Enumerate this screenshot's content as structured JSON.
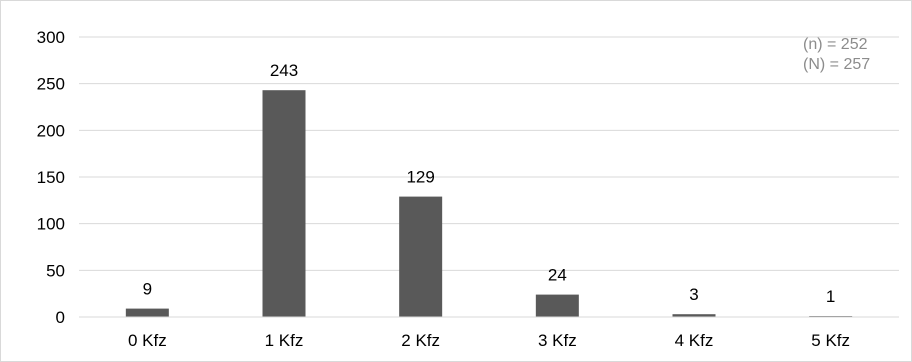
{
  "chart_data": {
    "type": "bar",
    "title": "",
    "xlabel": "",
    "ylabel": "",
    "categories": [
      "0 Kfz",
      "1 Kfz",
      "2 Kfz",
      "3 Kfz",
      "4 Kfz",
      "5 Kfz"
    ],
    "values": [
      9,
      243,
      129,
      24,
      3,
      1
    ],
    "data_labels": [
      "9",
      "243",
      "129",
      "24",
      "3",
      "1"
    ],
    "ylim": [
      0,
      300
    ],
    "yticks": [
      0,
      50,
      100,
      150,
      200,
      250,
      300
    ],
    "ytick_labels": [
      "0",
      "50",
      "100",
      "150",
      "200",
      "250",
      "300"
    ],
    "grid": "horizontal",
    "legend": "none",
    "bar_color": "#595959",
    "grid_color": "#d9d9d9",
    "annotations": [
      "(n) = 252",
      "(N) = 257"
    ]
  }
}
